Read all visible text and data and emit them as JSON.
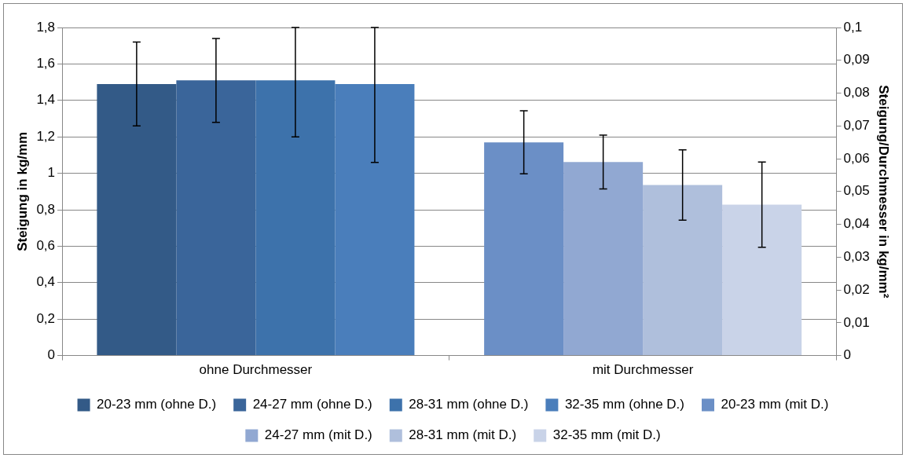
{
  "chart_data": {
    "type": "bar",
    "categories": [
      "ohne Durchmesser",
      "mit Durchmesser"
    ],
    "ylabel": "Steigung in kg/mm",
    "y2label": "Steigung/Durchmesser in kg/mm²",
    "ylim": [
      0,
      1.8
    ],
    "yticks": [
      {
        "value": 0,
        "label": "0"
      },
      {
        "value": 0.2,
        "label": "0,2"
      },
      {
        "value": 0.4,
        "label": "0,4"
      },
      {
        "value": 0.6,
        "label": "0,6"
      },
      {
        "value": 0.8,
        "label": "0,8"
      },
      {
        "value": 1,
        "label": "1"
      },
      {
        "value": 1.2,
        "label": "1,2"
      },
      {
        "value": 1.4,
        "label": "1,4"
      },
      {
        "value": 1.6,
        "label": "1,6"
      },
      {
        "value": 1.8,
        "label": "1,8"
      }
    ],
    "y2lim": [
      0,
      0.1
    ],
    "y2ticks": [
      {
        "value": 0,
        "label": "0"
      },
      {
        "value": 0.01,
        "label": "0,01"
      },
      {
        "value": 0.02,
        "label": "0,02"
      },
      {
        "value": 0.03,
        "label": "0,03"
      },
      {
        "value": 0.04,
        "label": "0,04"
      },
      {
        "value": 0.05,
        "label": "0,05"
      },
      {
        "value": 0.06,
        "label": "0,06"
      },
      {
        "value": 0.07,
        "label": "0,07"
      },
      {
        "value": 0.08,
        "label": "0,08"
      },
      {
        "value": 0.09,
        "label": "0,09"
      },
      {
        "value": 0.1,
        "label": "0,1"
      }
    ],
    "grid": "y",
    "legend": "bottom",
    "series": [
      {
        "name": "20-23 mm (ohne D.)",
        "color": "#335a87",
        "values": [
          1.49,
          null
        ],
        "errors": [
          0.23,
          null
        ]
      },
      {
        "name": "24-27 mm (ohne D.)",
        "color": "#3a659a",
        "values": [
          1.51,
          null
        ],
        "errors": [
          0.23,
          null
        ]
      },
      {
        "name": "28-31 mm (ohne D.)",
        "color": "#3d72ab",
        "values": [
          1.51,
          null
        ],
        "errors": [
          [
            1.2,
            1.8
          ],
          null
        ]
      },
      {
        "name": "32-35 mm (ohne D.)",
        "color": "#4a7ebb",
        "values": [
          1.49,
          null
        ],
        "errors": [
          [
            1.06,
            1.8
          ],
          null
        ]
      },
      {
        "name": "20-23 mm (mit D.)",
        "color": "#6b8fc6",
        "axis": "y2",
        "values": [
          null,
          0.065
        ],
        "errors": [
          null,
          0.0096
        ]
      },
      {
        "name": "24-27 mm (mit D.)",
        "color": "#91a8d2",
        "axis": "y2",
        "values": [
          null,
          0.059
        ],
        "errors": [
          null,
          0.0082
        ]
      },
      {
        "name": "28-31 mm (mit D.)",
        "color": "#afbfdc",
        "axis": "y2",
        "values": [
          null,
          0.052
        ],
        "errors": [
          null,
          0.0107
        ]
      },
      {
        "name": "32-35 mm (mit D.)",
        "color": "#c9d3e8",
        "axis": "y2",
        "values": [
          null,
          0.046
        ],
        "errors": [
          null,
          0.013
        ]
      }
    ]
  }
}
